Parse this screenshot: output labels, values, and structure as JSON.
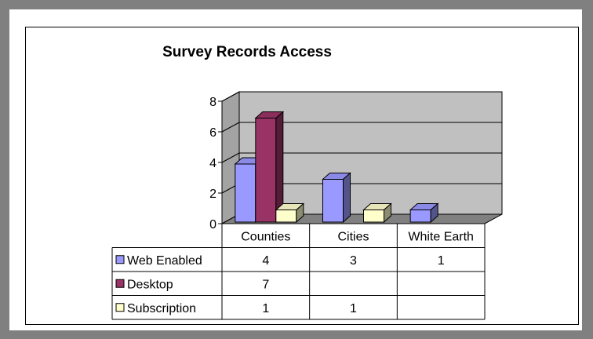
{
  "chart_data": {
    "type": "bar",
    "title": "Survey Records Access",
    "categories": [
      "Counties",
      "Cities",
      "White Earth"
    ],
    "series": [
      {
        "name": "Web Enabled",
        "values": [
          4,
          3,
          1
        ],
        "color": "#9999ff"
      },
      {
        "name": "Desktop",
        "values": [
          7,
          null,
          null
        ],
        "color": "#993366"
      },
      {
        "name": "Subscription",
        "values": [
          1,
          1,
          null
        ],
        "color": "#ffffcc"
      }
    ],
    "yticks": [
      0,
      2,
      4,
      6,
      8
    ],
    "ylim": [
      0,
      8
    ],
    "grid": true,
    "data_table": true,
    "wall_color": "#c0c0c0",
    "floor_color": "#808080"
  }
}
